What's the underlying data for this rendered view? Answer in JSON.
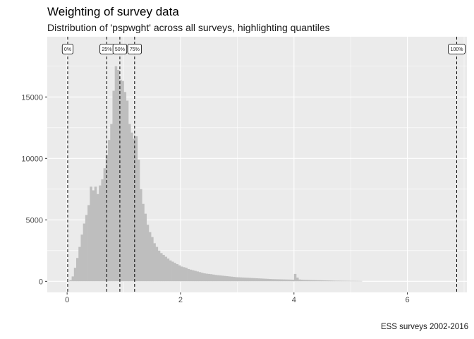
{
  "chart_data": {
    "type": "bar",
    "title": "Weighting of survey data",
    "subtitle": "Distribution of 'pspwght' across all surveys, highlighting quantiles",
    "caption": "ESS surveys 2002-2016",
    "xlabel": "",
    "ylabel": "",
    "xlim": [
      -0.35,
      7.05
    ],
    "ylim": [
      -900,
      19900
    ],
    "x_ticks": [
      0,
      2,
      4,
      6
    ],
    "x_tick_labels": [
      "0",
      "2",
      "4",
      "6"
    ],
    "y_ticks": [
      0,
      5000,
      10000,
      15000
    ],
    "y_tick_labels": [
      "0",
      "5000",
      "10000",
      "15000"
    ],
    "grid": true,
    "bin_width": 0.04,
    "bins": {
      "x_start": 0.0,
      "counts": [
        20,
        100,
        400,
        1100,
        1900,
        2800,
        3800,
        4700,
        5400,
        6200,
        7700,
        7400,
        7700,
        7100,
        7800,
        8300,
        9200,
        10300,
        11500,
        12800,
        15500,
        17500,
        17200,
        16400,
        16300,
        15400,
        14700,
        12800,
        12100,
        11600,
        11800,
        9900,
        7500,
        6300,
        5500,
        4600,
        4000,
        3600,
        3100,
        2800,
        2500,
        2300,
        2150,
        2000,
        1850,
        1700,
        1600,
        1500,
        1400,
        1300,
        1200,
        1150,
        1100,
        1000,
        950,
        900,
        850,
        800,
        750,
        700,
        650,
        620,
        600,
        580,
        550,
        520,
        500,
        480,
        460,
        440,
        420,
        400,
        380,
        360,
        340,
        330,
        320,
        310,
        300,
        290,
        280,
        270,
        260,
        250,
        240,
        230,
        220,
        210,
        200,
        190,
        180,
        175,
        170,
        165,
        160,
        155,
        150,
        145,
        140,
        135,
        600,
        300,
        150,
        130,
        120,
        115,
        110,
        105,
        100,
        95,
        90,
        85,
        80,
        75,
        70,
        65,
        60,
        55,
        50,
        48,
        46,
        44,
        42,
        40,
        38,
        36,
        34,
        32,
        30,
        28
      ]
    },
    "quantiles": [
      {
        "label": "0%",
        "x": 0.01
      },
      {
        "label": "25%",
        "x": 0.7
      },
      {
        "label": "50%",
        "x": 0.93
      },
      {
        "label": "75%",
        "x": 1.19
      },
      {
        "label": "100%",
        "x": 6.87
      }
    ],
    "colors": {
      "panel": "#ebebeb",
      "grid": "#ffffff",
      "bars": "#bebebe",
      "quantile_line": "#000000"
    }
  }
}
